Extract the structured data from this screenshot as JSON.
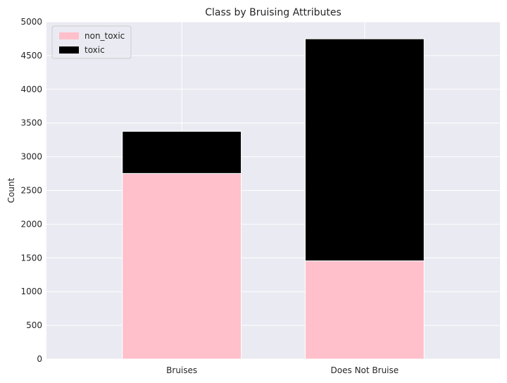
{
  "chart_data": {
    "type": "bar",
    "stacked": true,
    "title": "Class by Bruising Attributes",
    "xlabel": "",
    "ylabel": "Count",
    "ylim": [
      0,
      5000
    ],
    "yticks": [
      0,
      500,
      1000,
      1500,
      2000,
      2500,
      3000,
      3500,
      4000,
      4500,
      5000
    ],
    "categories": [
      "Bruises",
      "Does Not Bruise"
    ],
    "series": [
      {
        "name": "non_toxic",
        "color": "#ffc0cb",
        "values": [
          2752,
          1456
        ]
      },
      {
        "name": "toxic",
        "color": "#000000",
        "values": [
          624,
          3292
        ]
      }
    ],
    "grid": true,
    "legend": "top-left",
    "background": "#eaeaf2"
  }
}
